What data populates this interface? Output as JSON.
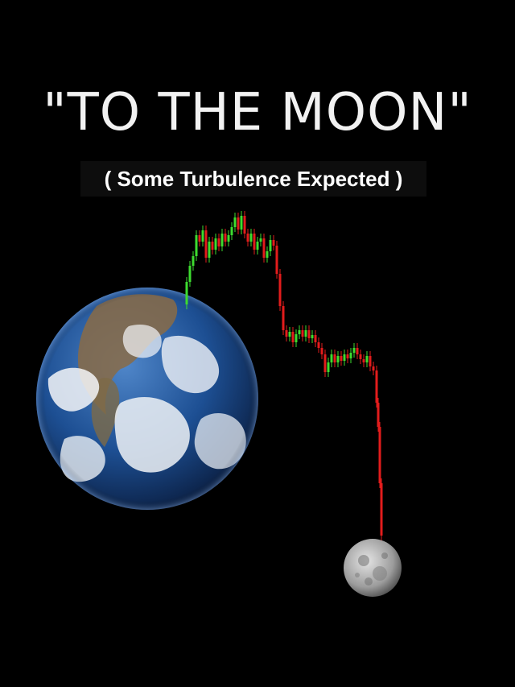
{
  "headline": "\"TO THE MOON\"",
  "subheadline": "( Some Turbulence Expected )",
  "colors": {
    "background": "#000000",
    "candle_up": "#3ddc2f",
    "candle_down": "#e21c1c",
    "earth_ocean": "#1b4f95",
    "moon": "#b9b9b9"
  },
  "icons": [
    "earth-globe-image",
    "moon-image",
    "price-candlestick-chart"
  ]
}
